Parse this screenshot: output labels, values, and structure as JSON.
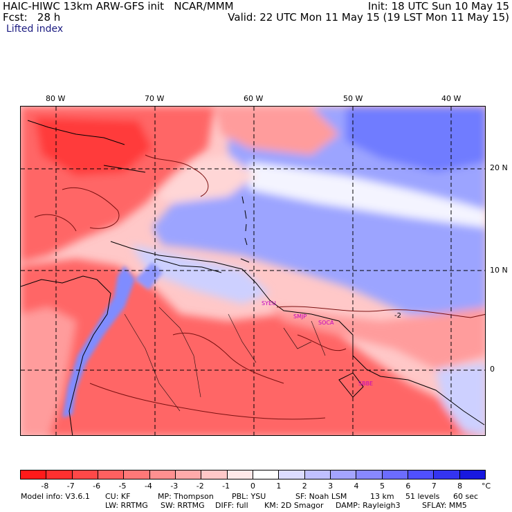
{
  "header": {
    "line1_left": "HAIC-HIWC 13km ARW-GFS init   NCAR/MMM",
    "line1_right": "Init: 18 UTC Sun 10 May 15",
    "line2_left": "Fcst:   28 h",
    "line2_right": "Valid: 22 UTC Mon 11 May 15 (19 LST Mon 11 May 15)",
    "field": "Lifted index"
  },
  "longitude_labels": [
    "80 W",
    "70 W",
    "60 W",
    "50 W",
    "40 W"
  ],
  "latitude_labels": [
    "20 N",
    "10 N",
    "0"
  ],
  "contour_label": "-2",
  "stations": [
    "SYEU",
    "SMJP",
    "SOCA",
    "SBBE"
  ],
  "colorbar": {
    "unit": "°C",
    "labels": [
      "-8",
      "-7",
      "-6",
      "-5",
      "-4",
      "-3",
      "-2",
      "-1",
      "0",
      "1",
      "2",
      "3",
      "4",
      "5",
      "6",
      "7",
      "8"
    ],
    "colors": [
      "#ff1a1a",
      "#ff3030",
      "#ff4848",
      "#ff6060",
      "#ff7878",
      "#ff9090",
      "#ffaaaa",
      "#ffc8c8",
      "#ffe8e8",
      "#ffffff",
      "#dcdcff",
      "#c0c0ff",
      "#a4a4ff",
      "#8888ff",
      "#6c6cff",
      "#5050ff",
      "#3434f0",
      "#1818e0"
    ]
  },
  "model_info": {
    "line1": [
      "Model info: V3.6.1",
      "CU: KF",
      "MP: Thompson",
      "PBL: YSU",
      "SF: Noah LSM",
      "13 km",
      "51 levels",
      "60 sec"
    ],
    "line2": [
      "LW: RRTMG",
      "SW: RRTMG",
      "DIFF: full",
      "KM: 2D Smagor",
      "DAMP: Rayleigh3",
      "SFLAY: MM5"
    ]
  },
  "map_colors": {
    "strong_red": "#ff3a3a",
    "red": "#ff6666",
    "light_red": "#ff9c9c",
    "pale": "#ffd6d6",
    "white": "#f4f4ff",
    "light_blue": "#cdd0ff",
    "blue": "#9ca4ff",
    "strong_blue": "#6f7cff"
  }
}
